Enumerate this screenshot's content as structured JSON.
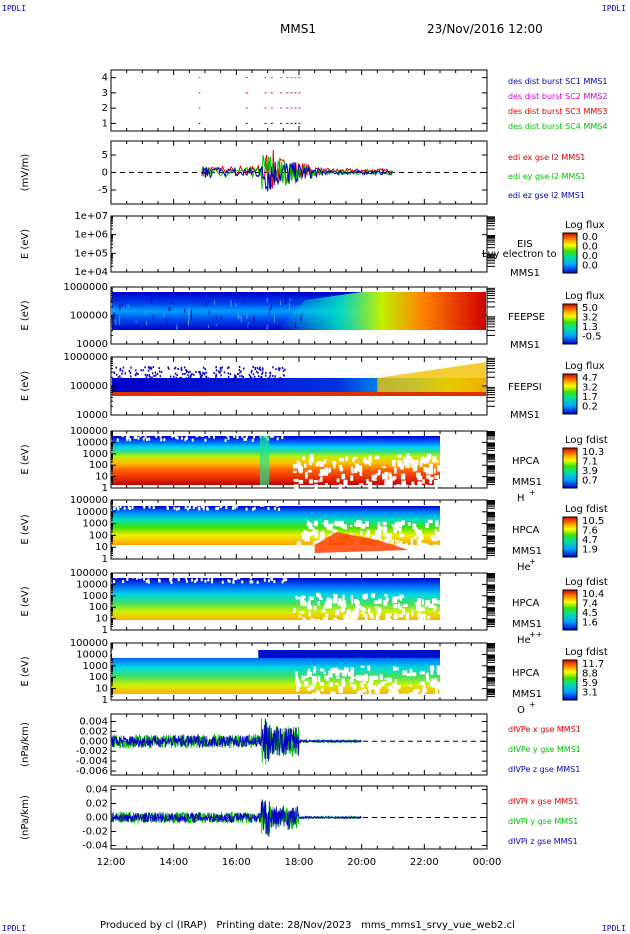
{
  "corner_labels": {
    "top_left": "IPDLI",
    "top_right": "IPDLI",
    "bottom_left": "IPDLI",
    "bottom_right": "IPDLI"
  },
  "header": {
    "mission": "MMS1",
    "date_time": "23/Nov/2016 12:00"
  },
  "footer": {
    "produced_by": "Produced by cl (IRAP)",
    "printing_date": "Printing date: 28/Nov/2023",
    "file": "mms_mms1_srvy_vue_web2.cl"
  },
  "colors": {
    "red": "#e00000",
    "green": "#00c000",
    "blue": "#0000c0",
    "magenta": "#d000d0",
    "black": "#000000"
  },
  "chart_data": [
    {
      "type": "line",
      "panel": "burst",
      "yticks": [
        "1",
        "2",
        "3",
        "4"
      ],
      "ylim": [
        0.5,
        4.5
      ],
      "legend": [
        {
          "text": "des dist burst SC1 MMS1",
          "color": "#0000c0"
        },
        {
          "text": "des dist burst SC2 MMS2",
          "color": "#d000d0"
        },
        {
          "text": "des dist burst SC3 MMS3",
          "color": "#e00000"
        },
        {
          "text": "des dist burst SC4 MMS4",
          "color": "#00c000"
        }
      ],
      "series": [
        {
          "y": 1,
          "color": "#0000c0",
          "segments": [
            [
              14.8,
              14.85
            ],
            [
              16.3,
              16.4
            ],
            [
              16.9,
              17.0
            ],
            [
              17.1,
              17.2
            ],
            [
              17.4,
              17.5
            ],
            [
              17.6,
              18.1
            ]
          ]
        },
        {
          "y": 2,
          "color": "#d000d0",
          "segments": [
            [
              14.8,
              14.85
            ],
            [
              16.3,
              16.4
            ],
            [
              16.9,
              17.0
            ],
            [
              17.1,
              17.2
            ],
            [
              17.4,
              17.5
            ],
            [
              17.6,
              18.1
            ]
          ]
        },
        {
          "y": 3,
          "color": "#e00000",
          "segments": [
            [
              14.8,
              14.85
            ],
            [
              16.3,
              16.4
            ],
            [
              16.9,
              17.0
            ],
            [
              17.1,
              17.2
            ],
            [
              17.4,
              17.5
            ],
            [
              17.6,
              18.1
            ]
          ]
        },
        {
          "y": 4,
          "color": "#00c000",
          "segments": [
            [
              14.8,
              14.85
            ],
            [
              16.3,
              16.4
            ],
            [
              16.9,
              17.0
            ],
            [
              17.1,
              17.2
            ],
            [
              17.4,
              17.5
            ],
            [
              17.6,
              18.1
            ]
          ]
        }
      ]
    },
    {
      "type": "line",
      "panel": "edi",
      "ylabel": "(mV/m)",
      "yticks": [
        "-5",
        "0",
        "5"
      ],
      "ytick_values": [
        -5,
        0,
        5
      ],
      "ylim": [
        -9,
        9
      ],
      "legend": [
        {
          "text": "edi ex gse l2 MMS1",
          "color": "#e00000"
        },
        {
          "text": "edi ey gse l2 MMS1",
          "color": "#00c000"
        },
        {
          "text": "edi ez gse l2 MMS1",
          "color": "#0000c0"
        }
      ],
      "data_range_hours": [
        14.9,
        21.0
      ]
    },
    {
      "type": "heatmap",
      "panel": "EIS",
      "ylabel": "E (eV)",
      "yticks": [
        "1e+04",
        "1e+05",
        "1e+06",
        "1e+07"
      ],
      "right_labels": [
        "EIS",
        "MMS1"
      ],
      "overlay_label": "Lvy electron to",
      "colorbar": {
        "title": "Log flux",
        "ticks": [
          "0.0",
          "0.0",
          "0.0",
          "0.0"
        ]
      }
    },
    {
      "type": "heatmap",
      "panel": "FEEPSE",
      "ylabel": "E (eV)",
      "yticks": [
        "10000",
        "100000",
        "1000000"
      ],
      "right_labels": [
        "FEEPSE",
        "MMS1"
      ],
      "colorbar": {
        "title": "Log flux",
        "ticks": [
          "5.0",
          "3.2",
          "1.3",
          "-0.5"
        ]
      }
    },
    {
      "type": "heatmap",
      "panel": "FEEPSI",
      "ylabel": "E (eV)",
      "yticks": [
        "10000",
        "100000",
        "1000000"
      ],
      "right_labels": [
        "FEEPSI",
        "MMS1"
      ],
      "colorbar": {
        "title": "Log flux",
        "ticks": [
          "4.7",
          "3.2",
          "1.7",
          "0.2"
        ]
      }
    },
    {
      "type": "heatmap",
      "panel": "HPCA_H",
      "ylabel": "E (eV)",
      "yticks": [
        "1",
        "10",
        "100",
        "1000",
        "10000",
        "100000"
      ],
      "right_labels": [
        "HPCA",
        "MMS1"
      ],
      "species": "H",
      "species_sup": "+",
      "colorbar": {
        "title": "Log fdist",
        "ticks": [
          "10.3",
          "7.1",
          "3.9",
          "0.7"
        ]
      }
    },
    {
      "type": "heatmap",
      "panel": "HPCA_He",
      "ylabel": "E (eV)",
      "yticks": [
        "1",
        "10",
        "100",
        "1000",
        "10000",
        "100000"
      ],
      "right_labels": [
        "HPCA",
        "MMS1"
      ],
      "species": "He",
      "species_sup": "+",
      "colorbar": {
        "title": "Log fdist",
        "ticks": [
          "10.5",
          "7.6",
          "4.7",
          "1.9"
        ]
      }
    },
    {
      "type": "heatmap",
      "panel": "HPCA_He2",
      "ylabel": "E (eV)",
      "yticks": [
        "1",
        "10",
        "100",
        "1000",
        "10000",
        "100000"
      ],
      "right_labels": [
        "HPCA",
        "MMS1"
      ],
      "species": "He",
      "species_sup": "++",
      "colorbar": {
        "title": "Log fdist",
        "ticks": [
          "10.4",
          "7.4",
          "4.5",
          "1.6"
        ]
      }
    },
    {
      "type": "heatmap",
      "panel": "HPCA_O",
      "ylabel": "E (eV)",
      "yticks": [
        "1",
        "10",
        "100",
        "1000",
        "10000",
        "100000"
      ],
      "right_labels": [
        "HPCA",
        "MMS1"
      ],
      "species": "O",
      "species_sup": "+",
      "colorbar": {
        "title": "Log fdist",
        "ticks": [
          "11.7",
          "8.8",
          "5.9",
          "3.1"
        ]
      }
    },
    {
      "type": "line",
      "panel": "dPe",
      "ylabel": "(nPa/km)",
      "yticks": [
        "-0.006",
        "-0.004",
        "-0.002",
        "0.000",
        "0.002",
        "0.004"
      ],
      "ytick_values": [
        -0.006,
        -0.004,
        -0.002,
        0,
        0.002,
        0.004
      ],
      "ylim": [
        -0.0068,
        0.0055
      ],
      "legend": [
        {
          "text": "dIVPe x gse MMS1",
          "color": "#e00000"
        },
        {
          "text": "dIVPe y gse MMS1",
          "color": "#00c000"
        },
        {
          "text": "dIVPe z gse MMS1",
          "color": "#0000c0"
        }
      ],
      "data_range_hours": [
        12.0,
        20.0
      ]
    },
    {
      "type": "line",
      "panel": "dPi",
      "ylabel": "(nPa/km)",
      "yticks": [
        "-0.04",
        "-0.02",
        "0.00",
        "0.02",
        "0.04"
      ],
      "ytick_values": [
        -0.04,
        -0.02,
        0,
        0.02,
        0.04
      ],
      "ylim": [
        -0.045,
        0.045
      ],
      "legend": [
        {
          "text": "dIVPi x gse MMS1",
          "color": "#e00000"
        },
        {
          "text": "dIVPi y gse MMS1",
          "color": "#00c000"
        },
        {
          "text": "dIVPi z gse MMS1",
          "color": "#0000c0"
        }
      ],
      "data_range_hours": [
        12.0,
        20.0
      ]
    }
  ],
  "x_axis": {
    "ticks": [
      "12:00",
      "14:00",
      "16:00",
      "18:00",
      "20:00",
      "22:00",
      "00:00"
    ],
    "hours": [
      12,
      14,
      16,
      18,
      20,
      22,
      24
    ]
  }
}
